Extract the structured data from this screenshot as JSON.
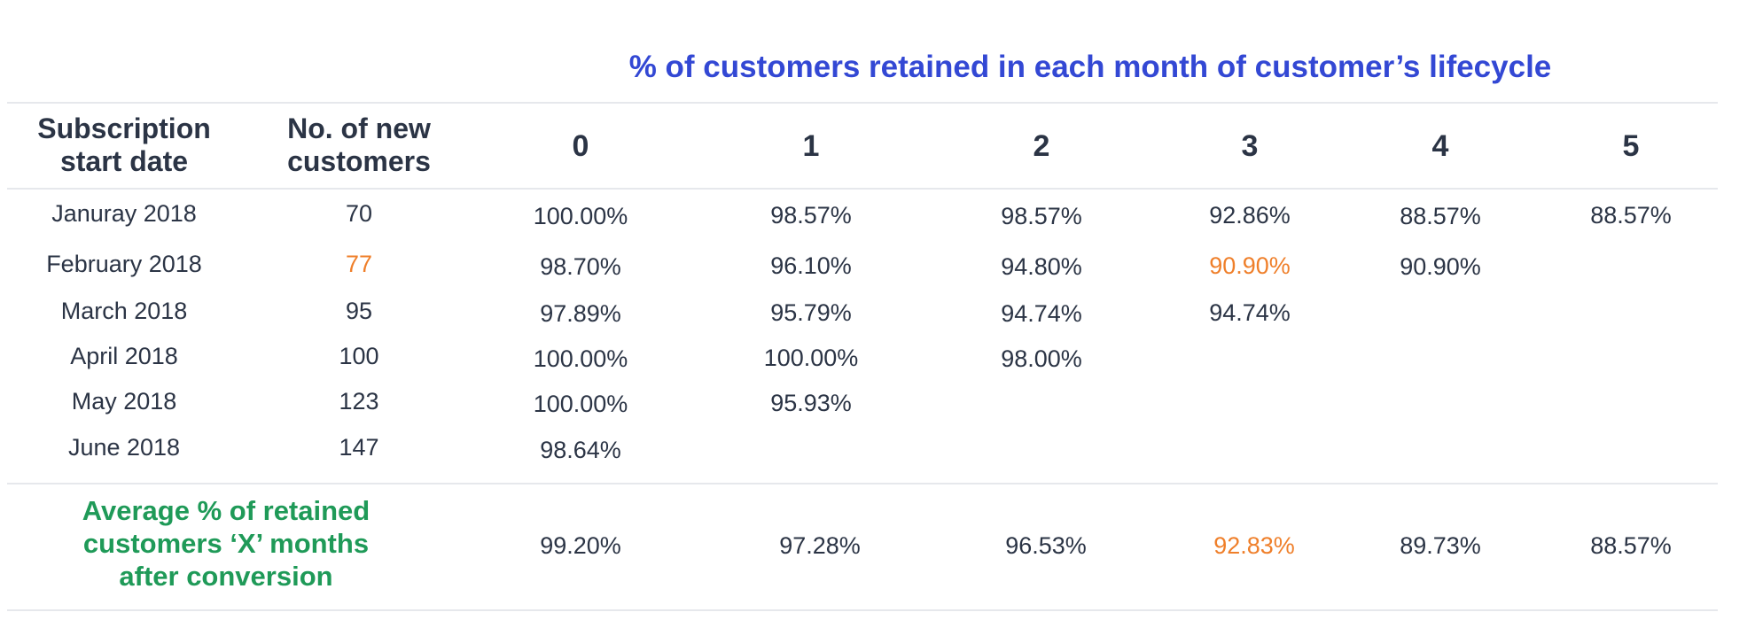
{
  "chart_data": {
    "type": "table",
    "title": "% of customers retained in each month of customer’s lifecycle",
    "columns": {
      "start_date": "Subscription start date",
      "new_customers": "No. of new customers",
      "months": [
        "0",
        "1",
        "2",
        "3",
        "4",
        "5"
      ]
    },
    "rows": [
      {
        "label": "Januray 2018",
        "count": "70",
        "values": [
          "100.00%",
          "98.57%",
          "98.57%",
          "92.86%",
          "88.57%",
          "88.57%"
        ]
      },
      {
        "label": "February 2018",
        "count": "77",
        "values": [
          "98.70%",
          "96.10%",
          "94.80%",
          "90.90%",
          "90.90%"
        ]
      },
      {
        "label": "March 2018",
        "count": "95",
        "values": [
          "97.89%",
          "95.79%",
          "94.74%",
          "94.74%"
        ]
      },
      {
        "label": "April 2018",
        "count": "100",
        "values": [
          "100.00%",
          "100.00%",
          "98.00%"
        ]
      },
      {
        "label": "May 2018",
        "count": "123",
        "values": [
          "100.00%",
          "95.93%"
        ]
      },
      {
        "label": "June 2018",
        "count": "147",
        "values": [
          "98.64%"
        ]
      }
    ],
    "average": {
      "label": "Average % of retained customers ‘X’ months after conversion",
      "values": [
        "99.20%",
        "97.28%",
        "96.53%",
        "92.83%",
        "89.73%",
        "88.57%"
      ]
    },
    "highlighted_cells": [
      {
        "row": 1,
        "column": "new_customers"
      },
      {
        "row": 1,
        "column": "month-3"
      },
      {
        "row": "average",
        "column": "month-3"
      }
    ],
    "colors": {
      "title": "#3348d4",
      "text": "#2b3445",
      "average_label": "#1f9a58",
      "highlight": "#ef7f2a",
      "rule": "#e6e8ec"
    }
  }
}
